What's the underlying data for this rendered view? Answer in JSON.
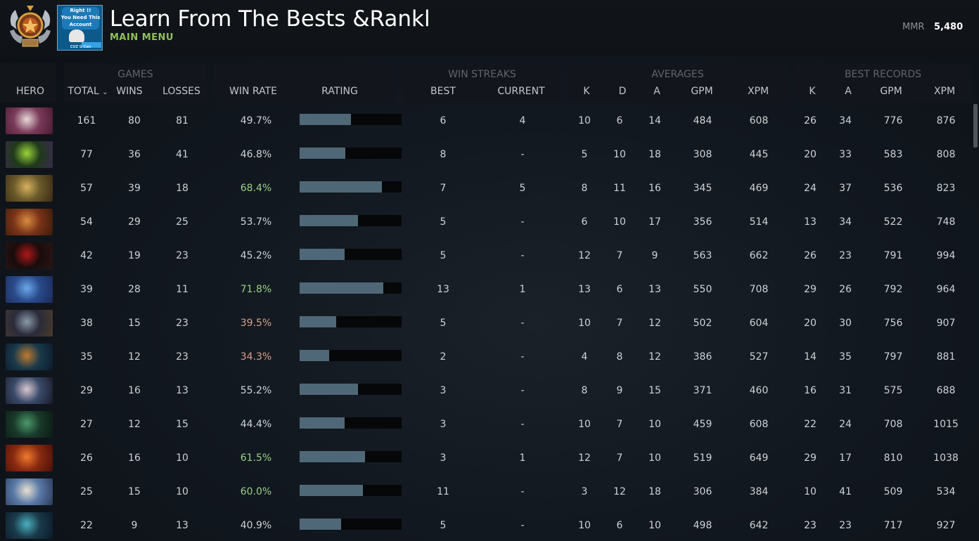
{
  "header": {
    "title": "Learn From The Bests &Rankl",
    "main_menu": "MAIN MENU",
    "mmr_label": "MMR",
    "mmr_value": "5,480",
    "promo_text": [
      "Right !!",
      "You Need This",
      "Account"
    ],
    "promo_footer": "CUZ U Can"
  },
  "groups": {
    "games": "GAMES",
    "win_streaks": "WIN STREAKS",
    "averages": "AVERAGES",
    "best_records": "BEST RECORDS"
  },
  "columns": {
    "hero": "HERO",
    "total": "TOTAL",
    "wins": "WINS",
    "losses": "LOSSES",
    "win_rate": "WIN RATE",
    "rating": "RATING",
    "best": "BEST",
    "current": "CURRENT",
    "avg_k": "K",
    "avg_d": "D",
    "avg_a": "A",
    "avg_gpm": "GPM",
    "avg_xpm": "XPM",
    "best_k": "K",
    "best_a": "A",
    "best_gpm": "GPM",
    "best_xpm": "XPM"
  },
  "colors": {
    "win_rate_good": "#9bcf88",
    "win_rate_bad": "#d7a08a",
    "rating_fill": "#4f6878",
    "main_menu": "#8fbf5a"
  },
  "rows": [
    {
      "total": "161",
      "wins": "80",
      "losses": "81",
      "win_rate": "49.7%",
      "rating": 0.5,
      "best": "6",
      "current": "4",
      "k": "10",
      "d": "6",
      "a": "14",
      "gpm": "484",
      "xpm": "608",
      "bk": "26",
      "ba": "34",
      "bgpm": "776",
      "bxpm": "876",
      "tone": "mid",
      "portrait": [
        "#7a3a5a",
        "#e8d8d8",
        "#4a1a30"
      ]
    },
    {
      "total": "77",
      "wins": "36",
      "losses": "41",
      "win_rate": "46.8%",
      "rating": 0.45,
      "best": "8",
      "current": "-",
      "k": "5",
      "d": "10",
      "a": "18",
      "gpm": "308",
      "xpm": "445",
      "bk": "20",
      "ba": "33",
      "bgpm": "583",
      "bxpm": "808",
      "tone": "mid",
      "portrait": [
        "#1f3a1a",
        "#9cd43a",
        "#3a2a50"
      ]
    },
    {
      "total": "57",
      "wins": "39",
      "losses": "18",
      "win_rate": "68.4%",
      "rating": 0.81,
      "best": "7",
      "current": "5",
      "k": "8",
      "d": "11",
      "a": "16",
      "gpm": "345",
      "xpm": "469",
      "bk": "24",
      "ba": "37",
      "bgpm": "536",
      "bxpm": "823",
      "tone": "good",
      "portrait": [
        "#6a5a2a",
        "#d8b060",
        "#3a2a14"
      ]
    },
    {
      "total": "54",
      "wins": "29",
      "losses": "25",
      "win_rate": "53.7%",
      "rating": 0.57,
      "best": "5",
      "current": "-",
      "k": "6",
      "d": "10",
      "a": "17",
      "gpm": "356",
      "xpm": "514",
      "bk": "13",
      "ba": "34",
      "bgpm": "522",
      "bxpm": "748",
      "tone": "mid",
      "portrait": [
        "#7a3418",
        "#d88a40",
        "#3a1a0a"
      ]
    },
    {
      "total": "42",
      "wins": "19",
      "losses": "23",
      "win_rate": "45.2%",
      "rating": 0.44,
      "best": "5",
      "current": "-",
      "k": "12",
      "d": "7",
      "a": "9",
      "gpm": "563",
      "xpm": "662",
      "bk": "26",
      "ba": "23",
      "bgpm": "791",
      "bxpm": "994",
      "tone": "mid",
      "portrait": [
        "#1a0c0c",
        "#b01818",
        "#2a1414"
      ]
    },
    {
      "total": "39",
      "wins": "28",
      "losses": "11",
      "win_rate": "71.8%",
      "rating": 0.82,
      "best": "13",
      "current": "1",
      "k": "13",
      "d": "6",
      "a": "13",
      "gpm": "550",
      "xpm": "708",
      "bk": "29",
      "ba": "26",
      "bgpm": "792",
      "bxpm": "964",
      "tone": "good",
      "portrait": [
        "#2a4a8a",
        "#6aa8e8",
        "#1a2a5a"
      ]
    },
    {
      "total": "38",
      "wins": "15",
      "losses": "23",
      "win_rate": "39.5%",
      "rating": 0.36,
      "best": "5",
      "current": "-",
      "k": "10",
      "d": "7",
      "a": "12",
      "gpm": "502",
      "xpm": "604",
      "bk": "20",
      "ba": "30",
      "bgpm": "756",
      "bxpm": "907",
      "tone": "bad",
      "portrait": [
        "#2a2a3a",
        "#8a9aa8",
        "#4a3a2a"
      ]
    },
    {
      "total": "35",
      "wins": "12",
      "losses": "23",
      "win_rate": "34.3%",
      "rating": 0.29,
      "best": "2",
      "current": "-",
      "k": "4",
      "d": "8",
      "a": "12",
      "gpm": "386",
      "xpm": "527",
      "bk": "14",
      "ba": "35",
      "bgpm": "797",
      "bxpm": "881",
      "tone": "bad",
      "portrait": [
        "#1a3a4a",
        "#c07a30",
        "#0a1a2a"
      ]
    },
    {
      "total": "29",
      "wins": "16",
      "losses": "13",
      "win_rate": "55.2%",
      "rating": 0.57,
      "best": "3",
      "current": "-",
      "k": "8",
      "d": "9",
      "a": "15",
      "gpm": "371",
      "xpm": "460",
      "bk": "16",
      "ba": "31",
      "bgpm": "575",
      "bxpm": "688",
      "tone": "mid",
      "portrait": [
        "#3a4a6a",
        "#d8c8d0",
        "#1a1a2a"
      ]
    },
    {
      "total": "27",
      "wins": "12",
      "losses": "15",
      "win_rate": "44.4%",
      "rating": 0.44,
      "best": "3",
      "current": "-",
      "k": "10",
      "d": "7",
      "a": "10",
      "gpm": "459",
      "xpm": "608",
      "bk": "22",
      "ba": "24",
      "bgpm": "708",
      "bxpm": "1015",
      "tone": "mid",
      "portrait": [
        "#1a3a2a",
        "#4a9a6a",
        "#0a1a14"
      ]
    },
    {
      "total": "26",
      "wins": "16",
      "losses": "10",
      "win_rate": "61.5%",
      "rating": 0.64,
      "best": "3",
      "current": "1",
      "k": "12",
      "d": "7",
      "a": "10",
      "gpm": "519",
      "xpm": "649",
      "bk": "29",
      "ba": "17",
      "bgpm": "810",
      "bxpm": "1038",
      "tone": "good",
      "portrait": [
        "#8a2a10",
        "#f07a30",
        "#4a1008"
      ]
    },
    {
      "total": "25",
      "wins": "15",
      "losses": "10",
      "win_rate": "60.0%",
      "rating": 0.62,
      "best": "11",
      "current": "-",
      "k": "3",
      "d": "12",
      "a": "18",
      "gpm": "306",
      "xpm": "384",
      "bk": "10",
      "ba": "41",
      "bgpm": "509",
      "bxpm": "534",
      "tone": "good",
      "portrait": [
        "#5a7aa8",
        "#e8e0d0",
        "#2a3a5a"
      ]
    },
    {
      "total": "22",
      "wins": "9",
      "losses": "13",
      "win_rate": "40.9%",
      "rating": 0.41,
      "best": "5",
      "current": "-",
      "k": "10",
      "d": "6",
      "a": "10",
      "gpm": "498",
      "xpm": "642",
      "bk": "23",
      "ba": "23",
      "bgpm": "717",
      "bxpm": "927",
      "tone": "mid",
      "portrait": [
        "#1a3a4a",
        "#4ab0c0",
        "#0a1a2a"
      ]
    }
  ]
}
